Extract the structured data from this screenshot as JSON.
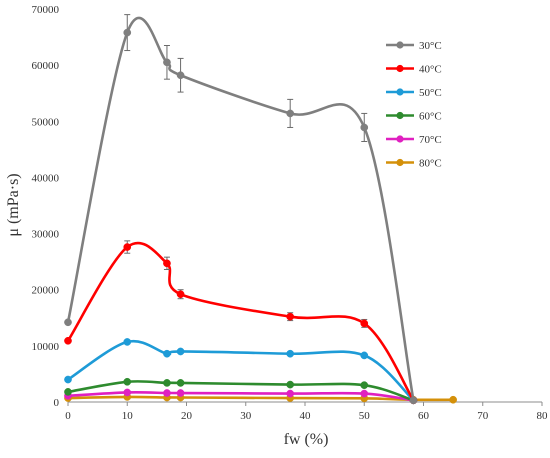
{
  "chart_data": {
    "type": "line",
    "xlabel": "fw (%)",
    "ylabel": "μ (mPa·s)",
    "xlim": [
      0,
      80
    ],
    "ylim": [
      0,
      70000
    ],
    "x_ticks": [
      0,
      10,
      20,
      30,
      40,
      50,
      60,
      70,
      80
    ],
    "y_ticks": [
      0,
      10000,
      20000,
      30000,
      40000,
      50000,
      60000,
      70000
    ],
    "x_tick_labels": [
      "0",
      "10",
      "20",
      "30",
      "40",
      "50",
      "60",
      "70",
      "80"
    ],
    "y_tick_labels": [
      "0",
      "10000",
      "20000",
      "30000",
      "40000",
      "50000",
      "60000",
      "70000"
    ],
    "grid": false,
    "legend_position": "top-right",
    "series": [
      {
        "name": "30°C",
        "color": "#7f7f7f",
        "x": [
          0,
          10,
          16.7,
          19,
          37.5,
          50,
          58.3
        ],
        "y": [
          14200,
          65800,
          60500,
          58200,
          51400,
          48900,
          300
        ],
        "error": [
          0,
          3200,
          3000,
          3000,
          2500,
          2500,
          0
        ]
      },
      {
        "name": "40°C",
        "color": "#ff0000",
        "x": [
          0,
          10,
          16.7,
          19,
          37.5,
          50,
          58.3
        ],
        "y": [
          10900,
          27600,
          24700,
          19200,
          15200,
          14000,
          300
        ],
        "error": [
          0,
          1100,
          1100,
          800,
          700,
          700,
          0
        ]
      },
      {
        "name": "50°C",
        "color": "#1e9bd7",
        "x": [
          0,
          10,
          16.7,
          19,
          37.5,
          50,
          58.3
        ],
        "y": [
          4000,
          10700,
          8600,
          9000,
          8600,
          8300,
          300
        ],
        "error": [
          0,
          0,
          0,
          0,
          0,
          0,
          0
        ]
      },
      {
        "name": "60°C",
        "color": "#2e8b2e",
        "x": [
          0,
          10,
          16.7,
          19,
          37.5,
          50,
          58.3
        ],
        "y": [
          1800,
          3600,
          3400,
          3400,
          3100,
          3000,
          300
        ],
        "error": [
          0,
          0,
          0,
          0,
          0,
          0,
          0
        ]
      },
      {
        "name": "70°C",
        "color": "#e020c0",
        "x": [
          0,
          10,
          16.7,
          19,
          37.5,
          50,
          58.3
        ],
        "y": [
          1100,
          1700,
          1600,
          1600,
          1500,
          1500,
          300
        ],
        "error": [
          0,
          0,
          0,
          0,
          0,
          0,
          0
        ]
      },
      {
        "name": "80°C",
        "color": "#d4900a",
        "x": [
          0,
          10,
          16.7,
          19,
          37.5,
          50,
          58.3,
          65
        ],
        "y": [
          700,
          900,
          800,
          800,
          700,
          650,
          400,
          400
        ],
        "error": [
          0,
          0,
          0,
          0,
          0,
          0,
          0,
          0
        ]
      }
    ]
  }
}
